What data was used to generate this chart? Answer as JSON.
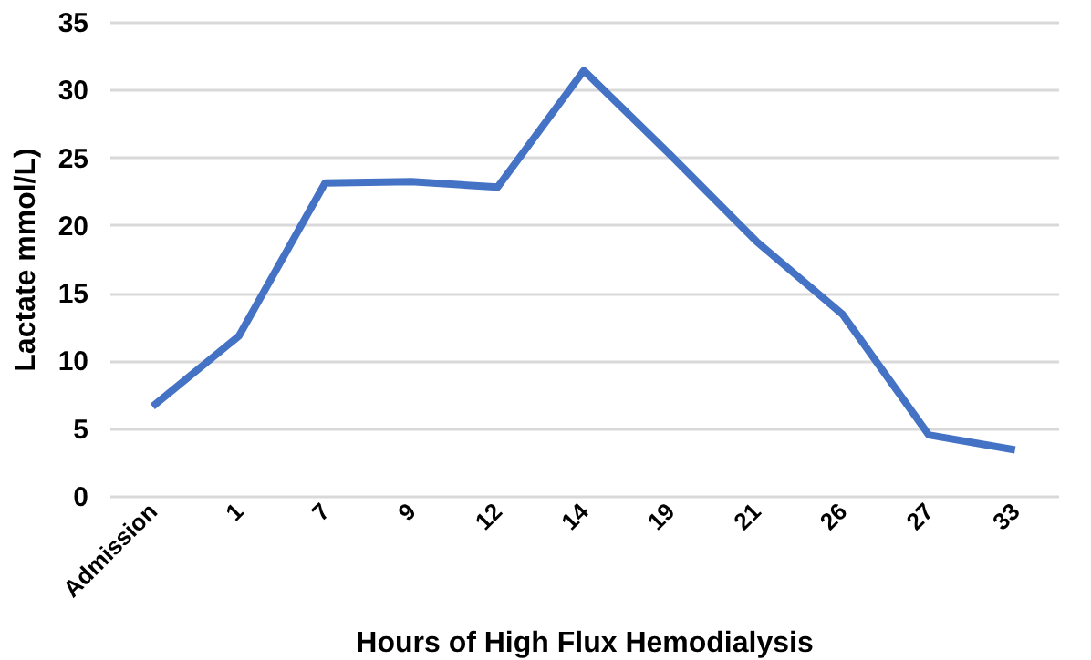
{
  "chart_data": {
    "type": "line",
    "xlabel": "Hours of High Flux Hemodialysis",
    "ylabel": "Lactate mmol/L)",
    "categories": [
      "Admission",
      "1",
      "7",
      "9",
      "12",
      "14",
      "19",
      "21",
      "26",
      "27",
      "33"
    ],
    "series": [
      {
        "color": "#4472c4",
        "values": [
          6.6,
          11.8,
          23.1,
          23.2,
          22.8,
          31.4,
          25.2,
          18.8,
          13.4,
          4.5,
          3.4
        ]
      }
    ],
    "ylim": [
      0,
      35
    ],
    "yticks": [
      0,
      5,
      10,
      15,
      20,
      25,
      30,
      35
    ],
    "grid": "y",
    "legend": false
  }
}
